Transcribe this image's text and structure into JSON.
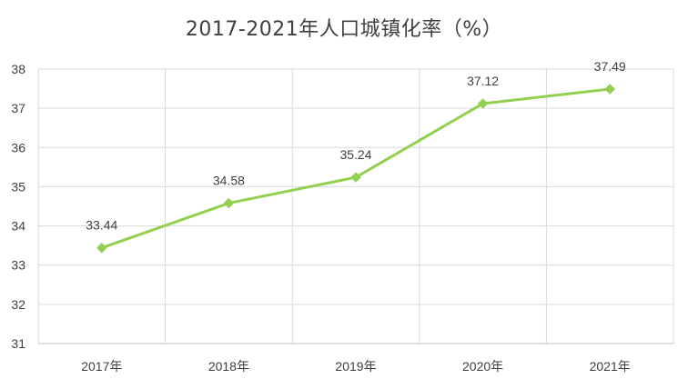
{
  "chart_data": {
    "type": "line",
    "title": "2017-2021年人口城镇化率（%）",
    "categories": [
      "2017年",
      "2018年",
      "2019年",
      "2020年",
      "2021年"
    ],
    "series": [
      {
        "values": [
          33.44,
          34.58,
          35.24,
          37.12,
          37.49
        ],
        "color": "#92d050"
      }
    ],
    "data_labels": [
      "33.44",
      "34.58",
      "35.24",
      "37.12",
      "37.49"
    ],
    "ylim": [
      31,
      38
    ],
    "yticks": [
      "31",
      "32",
      "33",
      "34",
      "35",
      "36",
      "37",
      "38"
    ],
    "grid": true,
    "legend": false
  }
}
